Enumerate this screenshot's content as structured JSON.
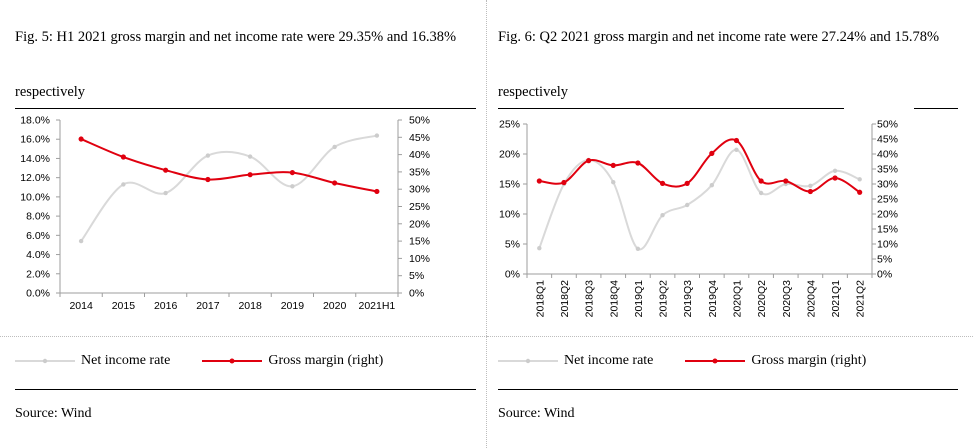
{
  "colors": {
    "net": "#d9d9d9",
    "gross": "#e0000f",
    "marker_net": "#cccccc",
    "marker_gross": "#e0000f"
  },
  "panels": [
    {
      "title": "Fig.  5: H1 2021 gross margin and net income rate were 29.35% and 16.38% respectively",
      "legend": {
        "net": "Net income rate",
        "gross": "Gross margin (right)"
      },
      "source": "Source: Wind"
    },
    {
      "title": "Fig.  6: Q2 2021 gross margin and net income rate were 27.24% and 15.78% respectively",
      "legend": {
        "net": "Net income rate",
        "gross": "Gross margin (right)"
      },
      "source": "Source: Wind"
    }
  ],
  "chart_data": [
    {
      "type": "line",
      "categories": [
        "2014",
        "2015",
        "2016",
        "2017",
        "2018",
        "2019",
        "2020",
        "2021H1"
      ],
      "series": [
        {
          "name": "Net income rate",
          "axis": "left",
          "values": [
            5.4,
            11.3,
            10.4,
            14.3,
            14.2,
            11.1,
            15.2,
            16.38
          ]
        },
        {
          "name": "Gross margin (right)",
          "axis": "right",
          "values": [
            44.5,
            39.3,
            35.5,
            32.8,
            34.2,
            34.8,
            31.8,
            29.35
          ]
        }
      ],
      "y_left": {
        "min": 0,
        "max": 18,
        "step": 2,
        "ticks": [
          "0.0%",
          "2.0%",
          "4.0%",
          "6.0%",
          "8.0%",
          "10.0%",
          "12.0%",
          "14.0%",
          "16.0%",
          "18.0%"
        ]
      },
      "y_right": {
        "min": 0,
        "max": 50,
        "step": 5,
        "ticks": [
          "0%",
          "5%",
          "10%",
          "15%",
          "20%",
          "25%",
          "30%",
          "35%",
          "40%",
          "45%",
          "50%"
        ]
      },
      "x_label_rotation": "horizontal",
      "grid": false,
      "legend_position": "bottom"
    },
    {
      "type": "line",
      "categories": [
        "2018Q1",
        "2018Q2",
        "2018Q3",
        "2018Q4",
        "2019Q1",
        "2019Q2",
        "2019Q3",
        "2019Q4",
        "2020Q1",
        "2020Q2",
        "2020Q3",
        "2020Q4",
        "2021Q1",
        "2021Q2"
      ],
      "series": [
        {
          "name": "Net income rate",
          "axis": "left",
          "values": [
            4.3,
            15.0,
            19.0,
            15.3,
            4.2,
            9.8,
            11.5,
            14.8,
            20.7,
            13.5,
            15.0,
            14.7,
            17.2,
            15.78
          ]
        },
        {
          "name": "Gross margin (right)",
          "axis": "right",
          "values": [
            31.0,
            30.5,
            37.8,
            36.2,
            37.0,
            30.2,
            30.2,
            40.2,
            44.5,
            31.0,
            31.0,
            27.5,
            32.0,
            27.24
          ]
        }
      ],
      "y_left": {
        "min": 0,
        "max": 25,
        "step": 5,
        "ticks": [
          "0%",
          "5%",
          "10%",
          "15%",
          "20%",
          "25%"
        ]
      },
      "y_right": {
        "min": 0,
        "max": 50,
        "step": 5,
        "ticks": [
          "0%",
          "5%",
          "10%",
          "15%",
          "20%",
          "25%",
          "30%",
          "35%",
          "40%",
          "45%",
          "50%"
        ]
      },
      "x_label_rotation": "vertical",
      "grid": false,
      "legend_position": "bottom"
    }
  ]
}
